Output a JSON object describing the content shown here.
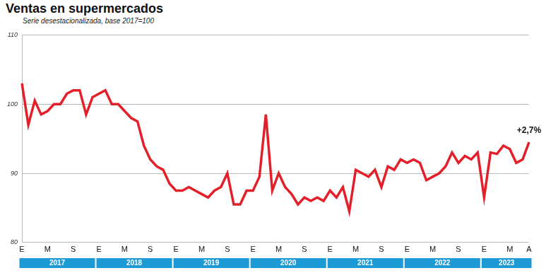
{
  "chart_data": {
    "type": "line",
    "title": "Ventas en supermercados",
    "subtitle": "Serie desestacionalizada, base 2017=100",
    "categories": [
      "E",
      null,
      null,
      null,
      "M",
      null,
      null,
      null,
      "S",
      null,
      null,
      null,
      "E",
      null,
      null,
      null,
      "M",
      null,
      null,
      null,
      "S",
      null,
      null,
      null,
      "E",
      null,
      null,
      null,
      "M",
      null,
      null,
      null,
      "S",
      null,
      null,
      null,
      "E",
      null,
      null,
      null,
      "M",
      null,
      null,
      null,
      "S",
      null,
      null,
      null,
      "E",
      null,
      null,
      null,
      "M",
      null,
      null,
      null,
      "S",
      null,
      null,
      null,
      "E",
      null,
      null,
      null,
      "M",
      null,
      null,
      null,
      "S",
      null,
      null,
      null,
      "E",
      null,
      null,
      null,
      "M",
      null,
      null,
      "A"
    ],
    "year_labels": [
      "2017",
      "2018",
      "2019",
      "2020",
      "2021",
      "2022",
      "2023"
    ],
    "values": [
      103,
      97,
      100.5,
      98.5,
      99,
      100,
      100,
      101.5,
      102,
      102,
      98.5,
      101,
      101.5,
      102,
      100,
      100,
      99,
      98,
      97.5,
      94,
      92,
      91,
      90.5,
      88.5,
      87.5,
      87.5,
      88,
      87.5,
      87,
      86.5,
      87.5,
      88,
      90,
      85.5,
      85.5,
      87.5,
      87.5,
      89.5,
      98.5,
      87.5,
      90,
      88,
      87,
      85.5,
      86.5,
      86,
      86.5,
      86,
      87.5,
      86.5,
      88,
      84.5,
      90.5,
      90,
      89.5,
      90.5,
      88,
      91,
      90.5,
      92,
      91.5,
      92,
      91.5,
      89,
      89.5,
      90,
      91,
      93,
      91.5,
      92.5,
      92,
      93,
      86.5,
      93,
      92.8,
      94,
      93.5,
      91.5,
      92,
      94.5
    ],
    "color": "#e3202a",
    "annotation": "+2,7%",
    "ylim": [
      80,
      110
    ],
    "yticks": [
      80,
      90,
      100,
      110
    ],
    "grid": true
  }
}
